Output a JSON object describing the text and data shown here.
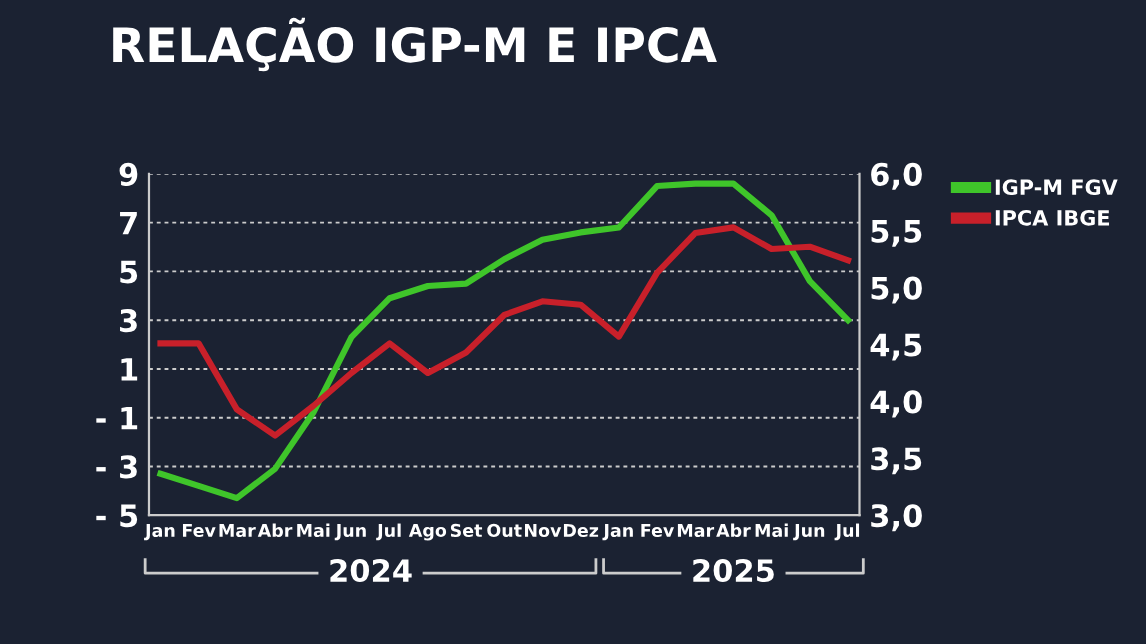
{
  "chart_data": {
    "type": "line",
    "title": "RELAÇÃO IGP-M E IPCA",
    "categories": [
      "Jan",
      "Fev",
      "Mar",
      "Abr",
      "Mai",
      "Jun",
      "Jul",
      "Ago",
      "Set",
      "Out",
      "Nov",
      "Dez",
      "Jan",
      "Fev",
      "Mar",
      "Abr",
      "Mai",
      "Jun",
      "Jul"
    ],
    "series": [
      {
        "name": "IGP-M FGV",
        "color": "#3fc52a",
        "values": [
          -3.3,
          -3.8,
          -4.3,
          -3.1,
          -0.8,
          2.3,
          3.9,
          4.4,
          4.5,
          5.5,
          6.3,
          6.6,
          6.8,
          8.5,
          8.6,
          8.6,
          7.3,
          4.6,
          3.0
        ]
      },
      {
        "name": "IPCA IBGE",
        "color": "#c8202a",
        "axis": "y2",
        "values": [
          4.51,
          4.51,
          3.93,
          3.7,
          3.96,
          4.25,
          4.51,
          4.25,
          4.43,
          4.76,
          4.88,
          4.85,
          4.57,
          5.13,
          5.48,
          5.53,
          5.34,
          5.36,
          5.24
        ]
      }
    ],
    "ylim": [
      -5,
      9
    ],
    "yticks": [
      {
        "value": -5,
        "label": "- 5"
      },
      {
        "value": -3,
        "label": "- 3"
      },
      {
        "value": -1,
        "label": "- 1"
      },
      1,
      3,
      5,
      7,
      9
    ],
    "y2lim": [
      3.0,
      6.0
    ],
    "y2ticks": [
      {
        "value": 3.0,
        "label": "3,0"
      },
      {
        "value": 3.5,
        "label": "3,5"
      },
      {
        "value": 4.0,
        "label": "4,0"
      },
      {
        "value": 4.5,
        "label": "4,5"
      },
      {
        "value": 5.0,
        "label": "5,0"
      },
      {
        "value": 5.5,
        "label": "5,5"
      },
      {
        "value": 6.0,
        "label": "6,0"
      }
    ],
    "annotations": [
      "2024",
      "2025"
    ],
    "grid": "y",
    "legend": "top right",
    "marker": "none",
    "line_style": "solid"
  }
}
